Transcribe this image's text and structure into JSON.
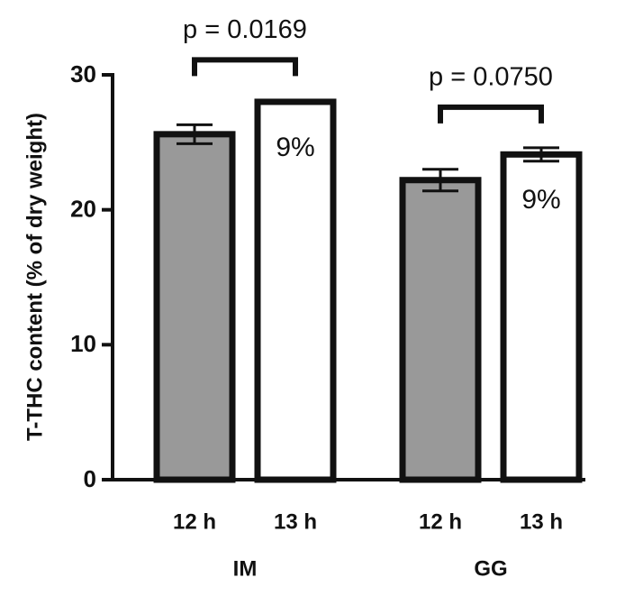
{
  "chart_data": {
    "type": "bar",
    "ylabel": "T-THC content (% of dry weight)",
    "categories": [
      "12 h",
      "13 h",
      "12 h",
      "13 h"
    ],
    "values": [
      25.6,
      28.0,
      22.2,
      24.1
    ],
    "errors": [
      0.7,
      0.1,
      0.8,
      0.5
    ],
    "colors": [
      "#999999",
      "#ffffff",
      "#999999",
      "#ffffff"
    ],
    "groups": [
      {
        "name": "IM",
        "p": "p = 0.0169",
        "change": "9%"
      },
      {
        "name": "GG",
        "p": "p = 0.0750",
        "change": "9%"
      }
    ],
    "ylim": [
      0,
      30
    ],
    "yticks": [
      0,
      10,
      20,
      30
    ]
  }
}
